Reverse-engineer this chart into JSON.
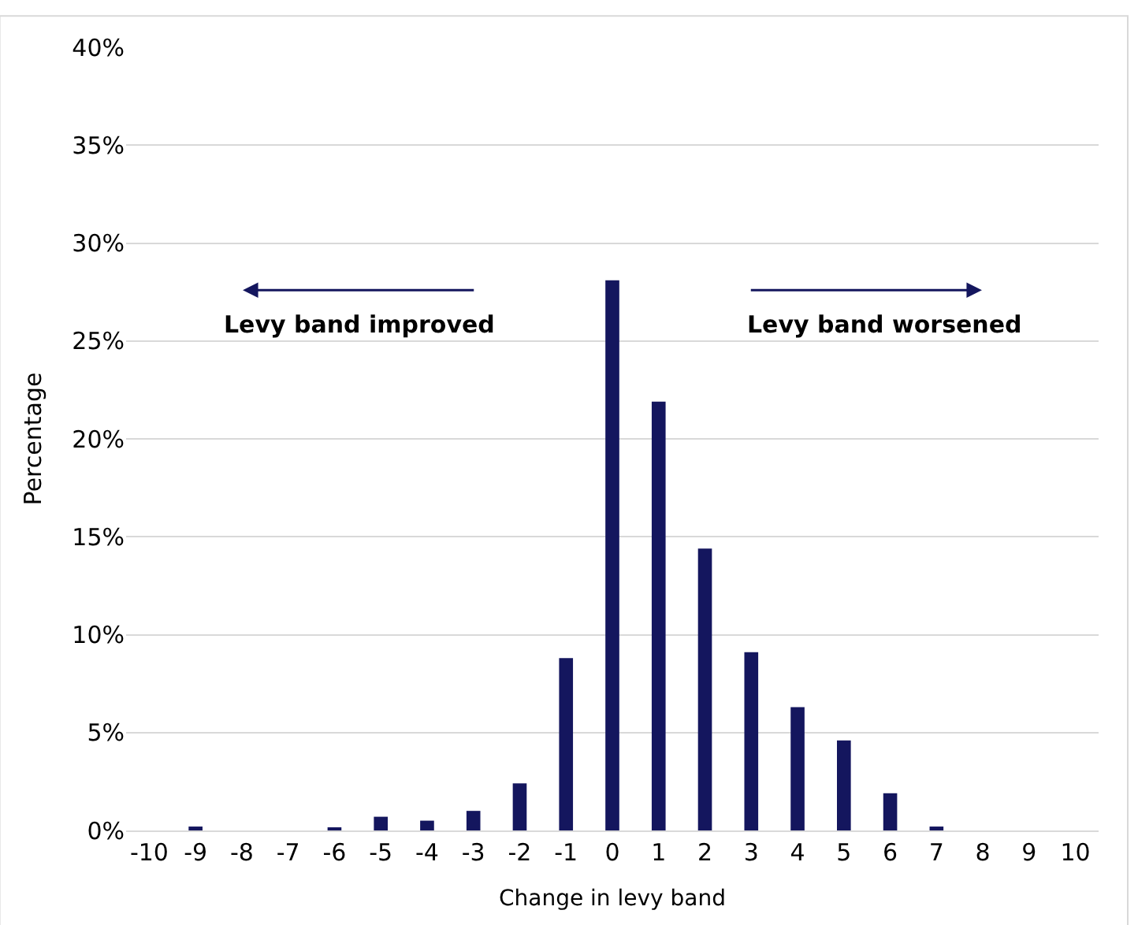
{
  "chart_data": {
    "type": "bar",
    "xlabel": "Change in levy band",
    "ylabel": "Percentage",
    "categories": [
      "-10",
      "-9",
      "-8",
      "-7",
      "-6",
      "-5",
      "-4",
      "-3",
      "-2",
      "-1",
      "0",
      "1",
      "2",
      "3",
      "4",
      "5",
      "6",
      "7",
      "8",
      "9",
      "10"
    ],
    "series": [
      {
        "color": "#14165e",
        "values": [
          0,
          0.2,
          0,
          0,
          0.1,
          0.7,
          0.5,
          1.0,
          2.4,
          8.8,
          28.1,
          21.9,
          14.4,
          9.1,
          6.3,
          4.6,
          1.9,
          0.2,
          0,
          0,
          0
        ]
      }
    ],
    "ylim": [
      0,
      40
    ],
    "yticks": [
      {
        "value": 0,
        "label": "0%"
      },
      {
        "value": 5,
        "label": "5%"
      },
      {
        "value": 10,
        "label": "10%"
      },
      {
        "value": 15,
        "label": "15%"
      },
      {
        "value": 20,
        "label": "20%"
      },
      {
        "value": 25,
        "label": "25%"
      },
      {
        "value": 30,
        "label": "30%"
      },
      {
        "value": 35,
        "label": "35%"
      },
      {
        "value": 40,
        "label": "40%"
      }
    ],
    "grid": "y",
    "annotations": [
      "Levy band improved",
      "Levy band worsened"
    ]
  }
}
